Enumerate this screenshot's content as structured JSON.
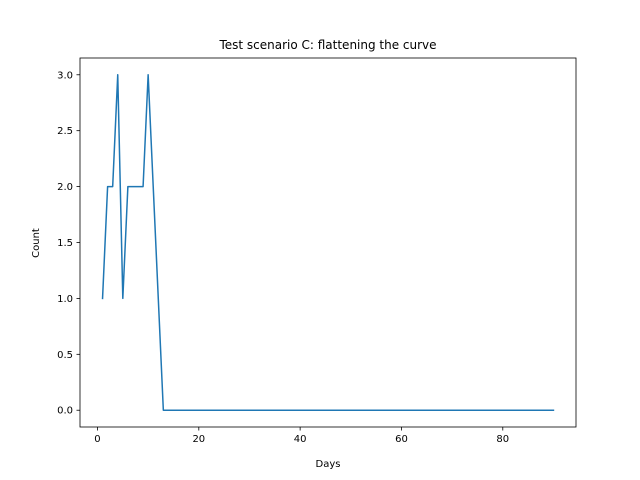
{
  "chart_data": {
    "type": "line",
    "title": "Test scenario C: flattening the curve",
    "xlabel": "Days",
    "ylabel": "Count",
    "xlim": [
      -3.45,
      94.45
    ],
    "ylim": [
      -0.15,
      3.15
    ],
    "xticks": [
      0,
      20,
      40,
      60,
      80
    ],
    "yticks": [
      0.0,
      0.5,
      1.0,
      1.5,
      2.0,
      2.5,
      3.0
    ],
    "xtick_labels": [
      "0",
      "20",
      "40",
      "60",
      "80"
    ],
    "ytick_labels": [
      "0.0",
      "0.5",
      "1.0",
      "1.5",
      "2.0",
      "2.5",
      "3.0"
    ],
    "grid": false,
    "legend": "none",
    "series": [
      {
        "color": "#1f77b4",
        "x": [
          1,
          2,
          3,
          4,
          5,
          6,
          7,
          8,
          9,
          10,
          11,
          12,
          13,
          14,
          90
        ],
        "y": [
          1,
          2,
          2,
          3,
          1,
          2,
          2,
          2,
          2,
          3,
          2,
          1,
          0,
          0,
          0
        ]
      }
    ]
  }
}
